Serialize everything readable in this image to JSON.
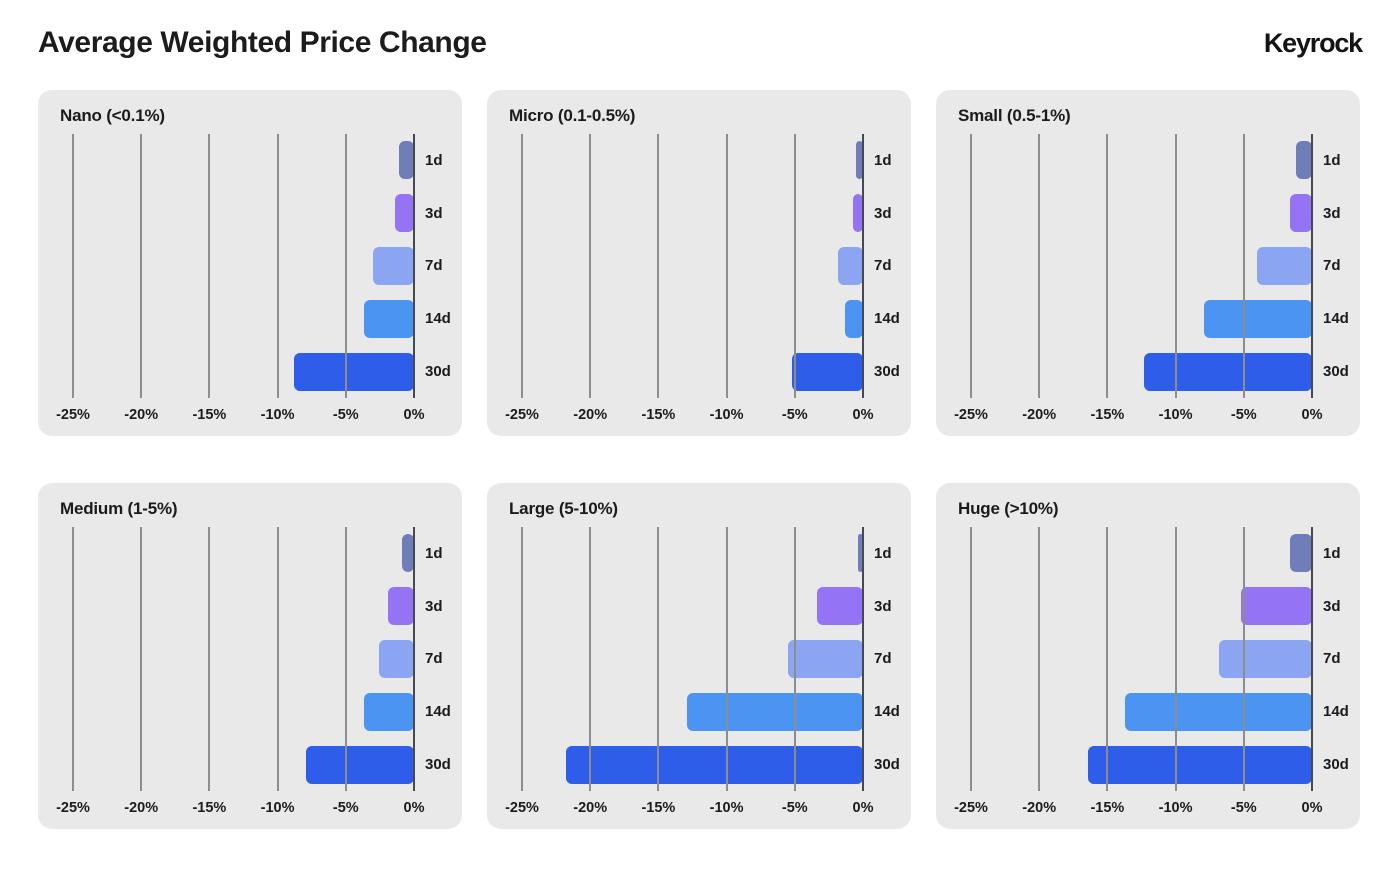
{
  "header": {
    "title": "Average Weighted Price Change",
    "brand": "Keyrock"
  },
  "chart_data": {
    "type": "bar",
    "orientation": "horizontal",
    "title": "Average Weighted Price Change",
    "unit": "%",
    "xlim": [
      -25,
      0
    ],
    "grid": true,
    "x_ticks": [
      "-25%",
      "-20%",
      "-15%",
      "-10%",
      "-5%",
      "0%"
    ],
    "categories": [
      "1d",
      "3d",
      "7d",
      "14d",
      "30d"
    ],
    "category_colors": {
      "1d": "#6f7db9",
      "3d": "#9474f4",
      "7d": "#8ca5f3",
      "14d": "#4b94f1",
      "30d": "#2e5ee9"
    },
    "panels": [
      {
        "title": "Nano (<0.1%)",
        "values": [
          -1.1,
          -1.4,
          -3.0,
          -3.7,
          -8.8
        ]
      },
      {
        "title": "Micro (0.1-0.5%)",
        "values": [
          -0.5,
          -0.7,
          -1.8,
          -1.3,
          -5.2
        ]
      },
      {
        "title": "Small (0.5-1%)",
        "values": [
          -1.2,
          -1.6,
          -4.0,
          -7.9,
          -12.3
        ]
      },
      {
        "title": "Medium (1-5%)",
        "values": [
          -0.9,
          -1.9,
          -2.6,
          -3.7,
          -7.9
        ]
      },
      {
        "title": "Large (5-10%)",
        "values": [
          -0.4,
          -3.4,
          -5.5,
          -12.9,
          -21.8
        ]
      },
      {
        "title": "Huge (>10%)",
        "values": [
          -1.6,
          -5.2,
          -6.8,
          -13.7,
          -16.4
        ]
      }
    ],
    "colors": {
      "page_background": "#ffffff",
      "panel_background": "#e9e9e9",
      "gridline": "#8d8d8d",
      "axis_line": "#46494e",
      "text": "#1b1b1b"
    }
  }
}
